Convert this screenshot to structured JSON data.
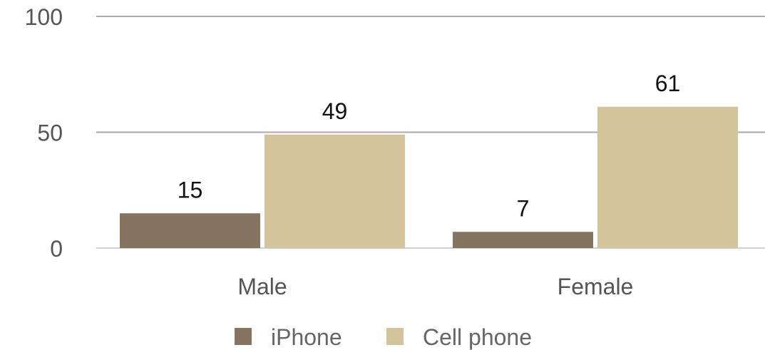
{
  "chart_data": {
    "type": "bar",
    "categories": [
      "Male",
      "Female"
    ],
    "series": [
      {
        "name": "iPhone",
        "values": [
          15,
          7
        ],
        "color": "#857560"
      },
      {
        "name": "Cell phone",
        "values": [
          49,
          61
        ],
        "color": "#d3c49b"
      }
    ],
    "ylim": [
      0,
      100
    ],
    "yticks": [
      "0",
      "50",
      "100"
    ],
    "grid": true,
    "legend": "bottom",
    "data_labels": true
  }
}
